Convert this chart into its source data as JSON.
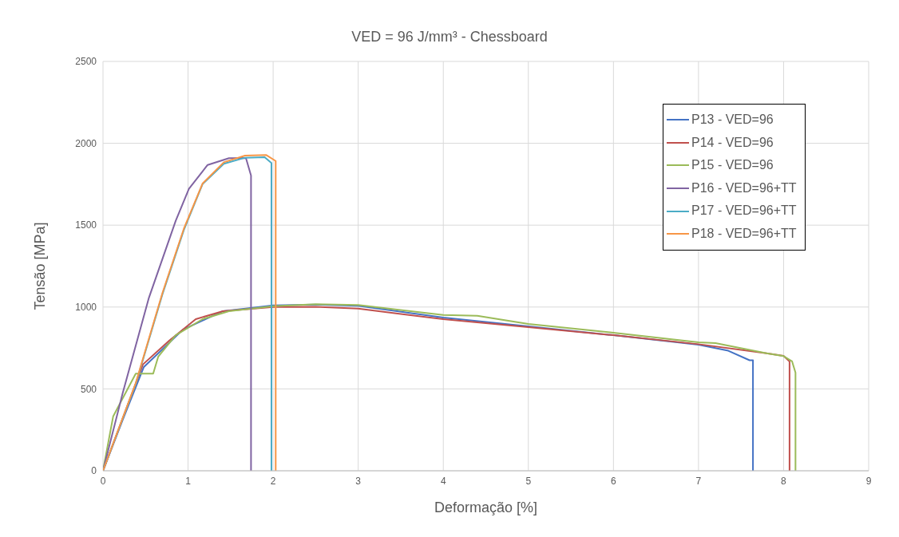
{
  "chart_data": {
    "type": "line",
    "title": "VED = 96 J/mm³ - Chessboard",
    "xlabel": "Deformação [%]",
    "ylabel": "Tensão [MPa]",
    "xlim": [
      0,
      9
    ],
    "xticks": [
      0,
      1,
      2,
      3,
      4,
      5,
      6,
      7,
      8,
      9
    ],
    "ylim": [
      0,
      2500
    ],
    "yticks": [
      0,
      500,
      1000,
      1500,
      2000,
      2500
    ],
    "grid": true,
    "legend": "top right",
    "series": [
      {
        "name": "P13 - VED=96",
        "color": "#4472c4",
        "x": [
          0,
          0.23,
          0.48,
          0.94,
          1.41,
          2.0,
          2.5,
          3,
          4,
          5,
          6,
          7,
          7.35,
          7.6,
          7.64,
          7.64
        ],
        "values": [
          0,
          309,
          634,
          862,
          975,
          1010,
          1015,
          1008,
          936,
          882,
          828,
          770,
          733,
          675,
          675,
          0
        ]
      },
      {
        "name": "P14 - VED=96",
        "color": "#c0504d",
        "x": [
          0,
          0.47,
          0.78,
          1.09,
          1.41,
          2.0,
          2.5,
          3,
          4,
          5,
          6,
          7,
          7.8,
          8.0,
          8.07,
          8.07
        ],
        "values": [
          0,
          650,
          796,
          926,
          975,
          1000,
          1001,
          990,
          926,
          877,
          828,
          773,
          718,
          702,
          668,
          0
        ]
      },
      {
        "name": "P15 - VED=96",
        "color": "#9bbb59",
        "x": [
          0,
          0.12,
          0.385,
          0.59,
          0.65,
          0.855,
          1.17,
          1.48,
          2.0,
          2.5,
          3,
          4,
          4.4,
          5,
          6,
          7,
          7.2,
          7.8,
          8.0,
          8.1,
          8.14,
          8.14
        ],
        "values": [
          0,
          333,
          593,
          593,
          698,
          828,
          926,
          975,
          1005,
          1017,
          1012,
          951,
          947,
          897,
          843,
          785,
          780,
          718,
          700,
          668,
          599,
          0
        ]
      },
      {
        "name": "P16 - VED=96+TT",
        "color": "#8064a2",
        "x": [
          0,
          0.23,
          0.54,
          0.855,
          1.01,
          1.23,
          1.48,
          1.68,
          1.74,
          1.74
        ],
        "values": [
          0,
          471,
          1057,
          1527,
          1722,
          1868,
          1909,
          1910,
          1803,
          0
        ]
      },
      {
        "name": "P17 - VED=96+TT",
        "color": "#4bacc6",
        "x": [
          0,
          0.385,
          0.7,
          0.95,
          1.17,
          1.42,
          1.67,
          1.9,
          1.98,
          1.98
        ],
        "values": [
          0,
          530,
          1080,
          1470,
          1750,
          1875,
          1912,
          1915,
          1880,
          0
        ]
      },
      {
        "name": "P18 - VED=96+TT",
        "color": "#f79646",
        "x": [
          0,
          0.385,
          0.7,
          0.95,
          1.17,
          1.42,
          1.67,
          1.92,
          2.03,
          2.03
        ],
        "values": [
          0,
          536,
          1088,
          1478,
          1754,
          1884,
          1925,
          1928,
          1892,
          0
        ]
      }
    ]
  }
}
